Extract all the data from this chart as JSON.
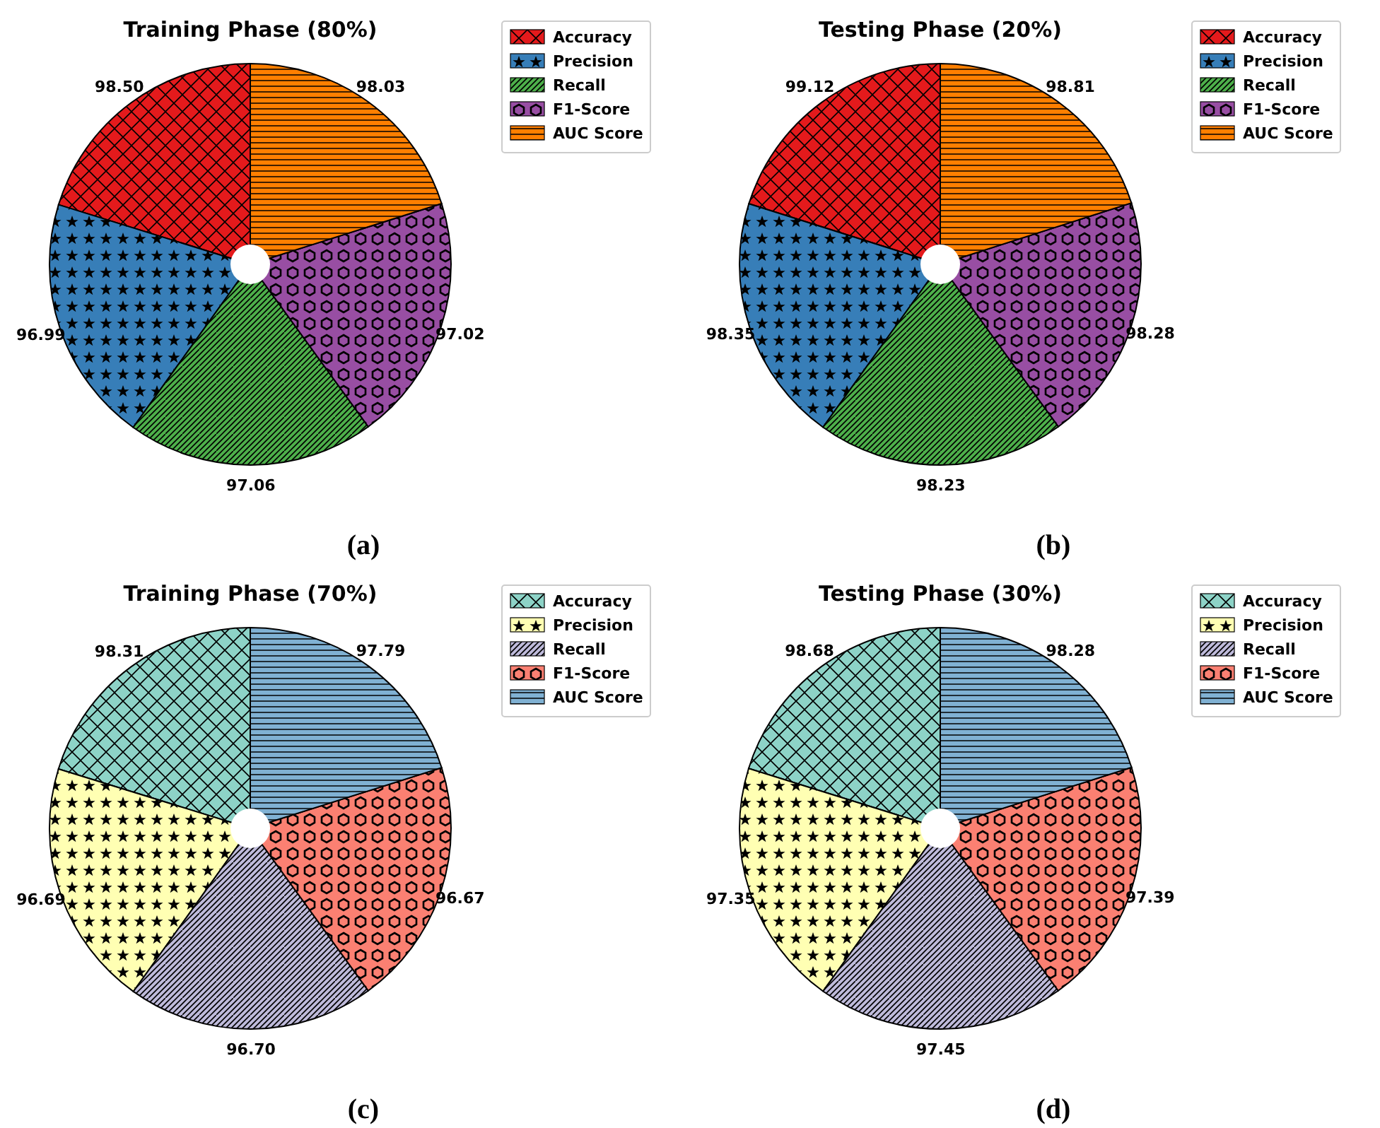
{
  "chart_data": [
    {
      "type": "pie",
      "title": "Training Phase (80%)",
      "categories": [
        "Accuracy",
        "Precision",
        "Recall",
        "F1-Score",
        "AUC Score"
      ],
      "values": [
        98.5,
        96.99,
        97.06,
        97.02,
        98.03
      ],
      "value_labels": [
        "98.50",
        "96.99",
        "97.06",
        "97.02",
        "98.03"
      ],
      "colors": [
        "#e41a1c",
        "#377eb8",
        "#4daf4a",
        "#984ea3",
        "#ff7f00"
      ],
      "legend": "right",
      "annotations": [
        "(a)"
      ]
    },
    {
      "type": "pie",
      "title": "Testing Phase (20%)",
      "categories": [
        "Accuracy",
        "Precision",
        "Recall",
        "F1-Score",
        "AUC Score"
      ],
      "values": [
        99.12,
        98.35,
        98.23,
        98.28,
        98.81
      ],
      "value_labels": [
        "99.12",
        "98.35",
        "98.23",
        "98.28",
        "98.81"
      ],
      "colors": [
        "#e41a1c",
        "#377eb8",
        "#4daf4a",
        "#984ea3",
        "#ff7f00"
      ],
      "legend": "right",
      "annotations": [
        "(b)"
      ]
    },
    {
      "type": "pie",
      "title": "Training Phase (70%)",
      "categories": [
        "Accuracy",
        "Precision",
        "Recall",
        "F1-Score",
        "AUC Score"
      ],
      "values": [
        98.31,
        96.69,
        96.7,
        96.67,
        97.79
      ],
      "value_labels": [
        "98.31",
        "96.69",
        "96.70",
        "96.67",
        "97.79"
      ],
      "colors": [
        "#8dd3c7",
        "#ffffb3",
        "#bebada",
        "#fb8072",
        "#80b1d3"
      ],
      "legend": "right",
      "annotations": [
        "(c)"
      ]
    },
    {
      "type": "pie",
      "title": "Testing Phase (30%)",
      "categories": [
        "Accuracy",
        "Precision",
        "Recall",
        "F1-Score",
        "AUC Score"
      ],
      "values": [
        98.68,
        97.35,
        97.45,
        97.39,
        98.28
      ],
      "value_labels": [
        "98.68",
        "97.35",
        "97.45",
        "97.39",
        "98.28"
      ],
      "colors": [
        "#8dd3c7",
        "#ffffb3",
        "#bebada",
        "#fb8072",
        "#80b1d3"
      ],
      "legend": "right",
      "annotations": [
        "(d)"
      ]
    }
  ]
}
